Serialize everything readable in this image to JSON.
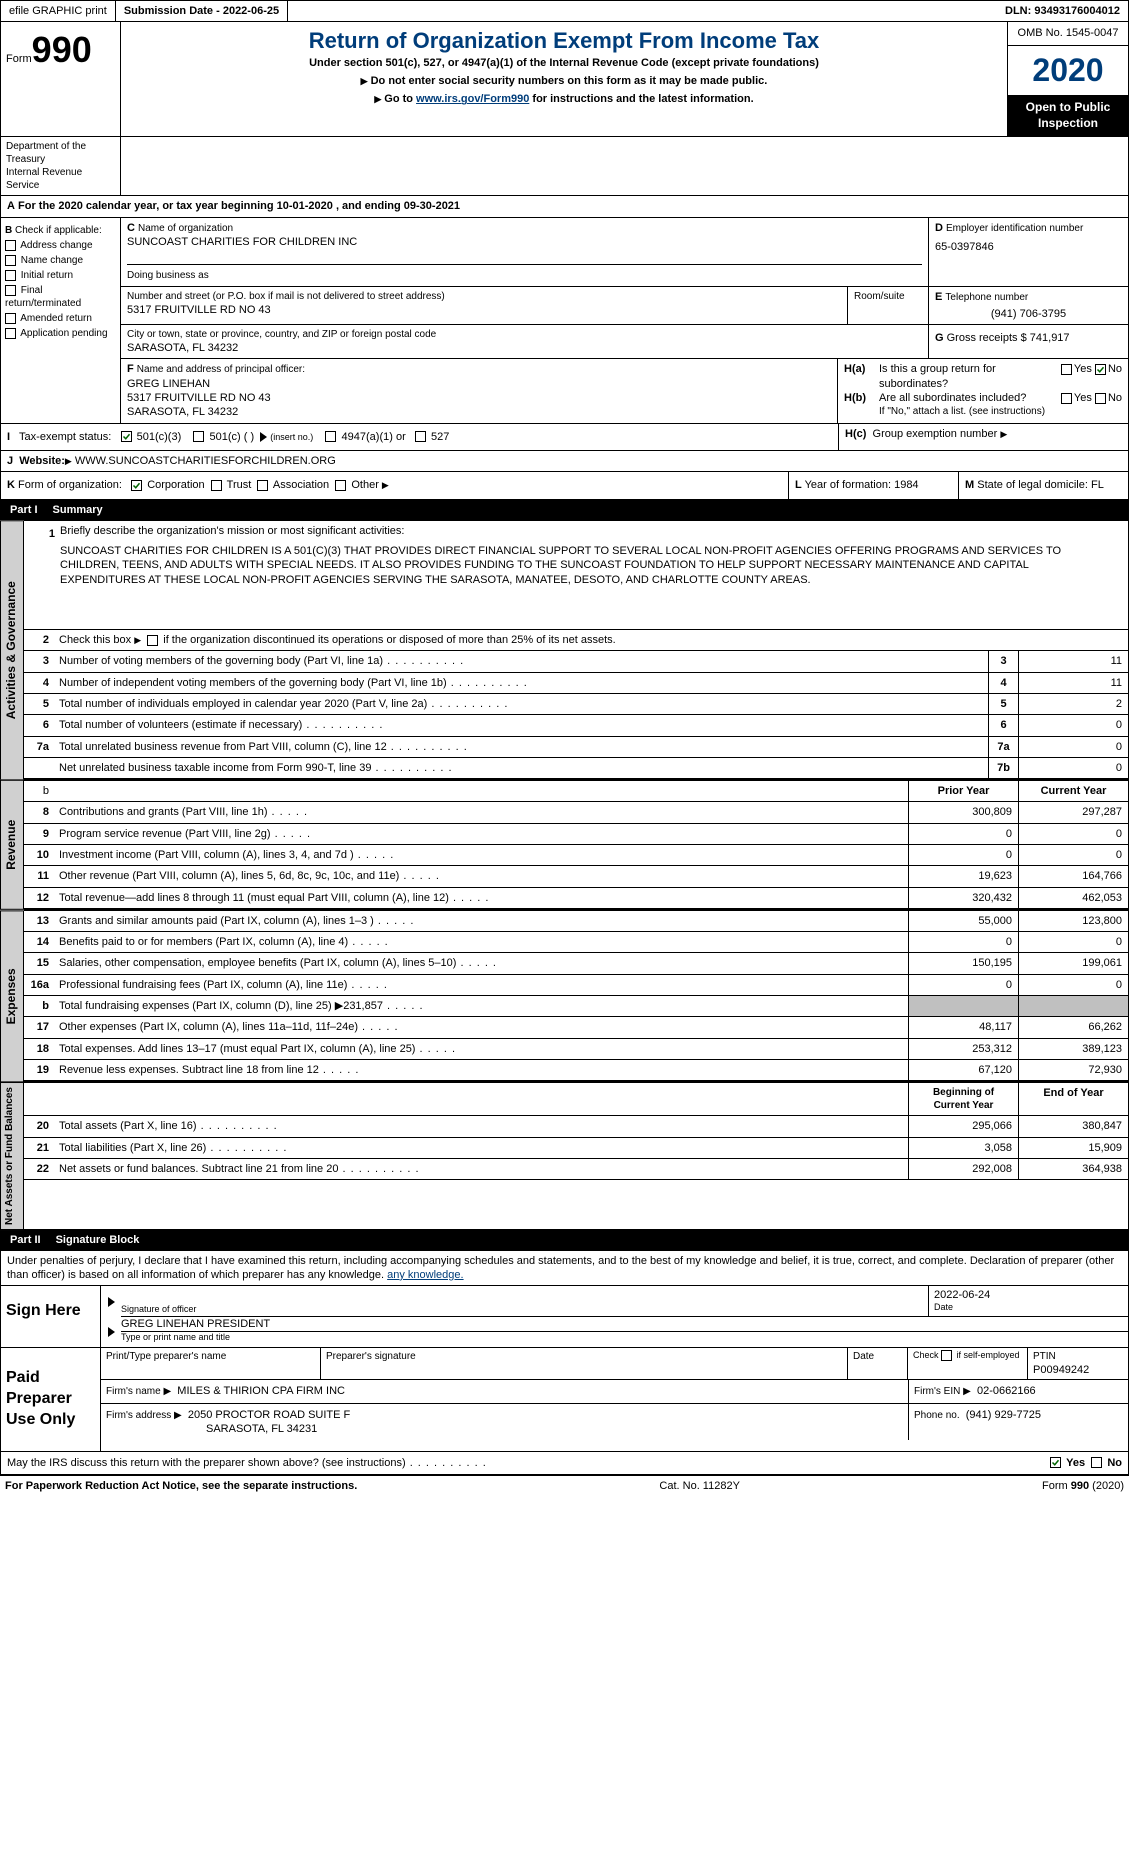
{
  "colors": {
    "blue": "#003d7a",
    "black": "#000000",
    "gray": "#c0c0c0",
    "side_gray": "#d0d0d0",
    "check_green": "#006400"
  },
  "header_bar": {
    "efile": "efile GRAPHIC print",
    "submission": "Submission Date - 2022-06-25",
    "dln": "DLN: 93493176004012"
  },
  "form": {
    "form_label": "Form",
    "form_number": "990",
    "title": "Return of Organization Exempt From Income Tax",
    "subtitle": "Under section 501(c), 527, or 4947(a)(1) of the Internal Revenue Code (except private foundations)",
    "ssn_note": "Do not enter social security numbers on this form as it may be made public.",
    "goto_pre": "Go to ",
    "goto_link": "www.irs.gov/Form990",
    "goto_post": " for instructions and the latest information.",
    "omb": "OMB No. 1545-0047",
    "year": "2020",
    "open_public": "Open to Public Inspection",
    "dept1": "Department of the Treasury",
    "dept2": "Internal Revenue Service"
  },
  "section_a": {
    "a_label": "A",
    "period": "For the 2020 calendar year, or tax year beginning 10-01-2020   , and ending 09-30-2021",
    "b_label": "B",
    "b_text": "Check if applicable:",
    "checks": {
      "address": "Address change",
      "name": "Name change",
      "initial": "Initial return",
      "final": "Final return/terminated",
      "amended": "Amended return",
      "app": "Application pending"
    },
    "c_label": "C",
    "c_name_label": "Name of organization",
    "c_name": "SUNCOAST CHARITIES FOR CHILDREN INC",
    "dba_label": "Doing business as",
    "dba": "",
    "street_label": "Number and street (or P.O. box if mail is not delivered to street address)",
    "street": "5317 FRUITVILLE RD NO 43",
    "room_label": "Room/suite",
    "city_label": "City or town, state or province, country, and ZIP or foreign postal code",
    "city": "SARASOTA, FL  34232",
    "d_label": "D",
    "d_text": "Employer identification number",
    "ein": "65-0397846",
    "e_label": "E",
    "e_text": "Telephone number",
    "phone": "(941) 706-3795",
    "g_label": "G",
    "g_text": "Gross receipts $",
    "gross": "741,917",
    "f_label": "F",
    "f_text": "Name and address of principal officer:",
    "officer_name": "GREG LINEHAN",
    "officer_addr1": "5317 FRUITVILLE RD NO 43",
    "officer_addr2": "SARASOTA, FL  34232",
    "ha_label": "H(a)",
    "ha_text": "Is this a group return for subordinates?",
    "hb_label": "H(b)",
    "hb_text": "Are all subordinates included?",
    "hb_note": "If \"No,\" attach a list. (see instructions)",
    "hc_label": "H(c)",
    "hc_text": "Group exemption number",
    "yes": "Yes",
    "no": "No",
    "i_label": "I",
    "i_text": "Tax-exempt status:",
    "i_501c3": "501(c)(3)",
    "i_501c": "501(c) (   )",
    "i_insert": "(insert no.)",
    "i_4947": "4947(a)(1) or",
    "i_527": "527",
    "j_label": "J",
    "j_text": "Website:",
    "website": "WWW.SUNCOASTCHARITIESFORCHILDREN.ORG",
    "k_label": "K",
    "k_text": "Form of organization:",
    "k_corp": "Corporation",
    "k_trust": "Trust",
    "k_assoc": "Association",
    "k_other": "Other",
    "l_label": "L",
    "l_text": "Year of formation:",
    "l_year": "1984",
    "m_label": "M",
    "m_text": "State of legal domicile:",
    "m_state": "FL"
  },
  "part1": {
    "header_num": "Part I",
    "header_title": "Summary",
    "line1_num": "1",
    "line1_text": "Briefly describe the organization's mission or most significant activities:",
    "mission": "SUNCOAST CHARITIES FOR CHILDREN IS A 501(C)(3) THAT PROVIDES DIRECT FINANCIAL SUPPORT TO SEVERAL LOCAL NON-PROFIT AGENCIES OFFERING PROGRAMS AND SERVICES TO CHILDREN, TEENS, AND ADULTS WITH SPECIAL NEEDS. IT ALSO PROVIDES FUNDING TO THE SUNCOAST FOUNDATION TO HELP SUPPORT NECESSARY MAINTENANCE AND CAPITAL EXPENDITURES AT THESE LOCAL NON-PROFIT AGENCIES SERVING THE SARASOTA, MANATEE, DESOTO, AND CHARLOTTE COUNTY AREAS.",
    "line2_num": "2",
    "line2_text": "Check this box ▶     if the organization discontinued its operations or disposed of more than 25% of its net assets.",
    "rows": [
      {
        "n": "3",
        "text": "Number of voting members of the governing body (Part VI, line 1a)",
        "box": "3",
        "val": "11"
      },
      {
        "n": "4",
        "text": "Number of independent voting members of the governing body (Part VI, line 1b)",
        "box": "4",
        "val": "11"
      },
      {
        "n": "5",
        "text": "Total number of individuals employed in calendar year 2020 (Part V, line 2a)",
        "box": "5",
        "val": "2"
      },
      {
        "n": "6",
        "text": "Total number of volunteers (estimate if necessary)",
        "box": "6",
        "val": "0"
      },
      {
        "n": "7a",
        "text": "Total unrelated business revenue from Part VIII, column (C), line 12",
        "box": "7a",
        "val": "0"
      },
      {
        "n": "",
        "text": "Net unrelated business taxable income from Form 990-T, line 39",
        "box": "7b",
        "val": "0"
      }
    ],
    "side_label_gov": "Activities & Governance",
    "side_label_rev": "Revenue",
    "side_label_exp": "Expenses",
    "side_label_net": "Net Assets or Fund Balances",
    "col_prior": "Prior Year",
    "col_current": "Current Year",
    "rev_rows": [
      {
        "n": "8",
        "text": "Contributions and grants (Part VIII, line 1h)",
        "prior": "300,809",
        "curr": "297,287"
      },
      {
        "n": "9",
        "text": "Program service revenue (Part VIII, line 2g)",
        "prior": "0",
        "curr": "0"
      },
      {
        "n": "10",
        "text": "Investment income (Part VIII, column (A), lines 3, 4, and 7d )",
        "prior": "0",
        "curr": "0"
      },
      {
        "n": "11",
        "text": "Other revenue (Part VIII, column (A), lines 5, 6d, 8c, 9c, 10c, and 11e)",
        "prior": "19,623",
        "curr": "164,766"
      },
      {
        "n": "12",
        "text": "Total revenue—add lines 8 through 11 (must equal Part VIII, column (A), line 12)",
        "prior": "320,432",
        "curr": "462,053"
      }
    ],
    "exp_rows": [
      {
        "n": "13",
        "text": "Grants and similar amounts paid (Part IX, column (A), lines 1–3 )",
        "prior": "55,000",
        "curr": "123,800"
      },
      {
        "n": "14",
        "text": "Benefits paid to or for members (Part IX, column (A), line 4)",
        "prior": "0",
        "curr": "0"
      },
      {
        "n": "15",
        "text": "Salaries, other compensation, employee benefits (Part IX, column (A), lines 5–10)",
        "prior": "150,195",
        "curr": "199,061"
      },
      {
        "n": "16a",
        "text": "Professional fundraising fees (Part IX, column (A), line 11e)",
        "prior": "0",
        "curr": "0"
      },
      {
        "n": "b",
        "text": "Total fundraising expenses (Part IX, column (D), line 25) ▶231,857",
        "prior": "gray",
        "curr": "gray"
      },
      {
        "n": "17",
        "text": "Other expenses (Part IX, column (A), lines 11a–11d, 11f–24e)",
        "prior": "48,117",
        "curr": "66,262"
      },
      {
        "n": "18",
        "text": "Total expenses. Add lines 13–17 (must equal Part IX, column (A), line 25)",
        "prior": "253,312",
        "curr": "389,123"
      },
      {
        "n": "19",
        "text": "Revenue less expenses. Subtract line 18 from line 12",
        "prior": "67,120",
        "curr": "72,930"
      }
    ],
    "col_begin": "Beginning of Current Year",
    "col_end": "End of Year",
    "net_rows": [
      {
        "n": "20",
        "text": "Total assets (Part X, line 16)",
        "prior": "295,066",
        "curr": "380,847"
      },
      {
        "n": "21",
        "text": "Total liabilities (Part X, line 26)",
        "prior": "3,058",
        "curr": "15,909"
      },
      {
        "n": "22",
        "text": "Net assets or fund balances. Subtract line 21 from line 20",
        "prior": "292,008",
        "curr": "364,938"
      }
    ]
  },
  "part2": {
    "header_num": "Part II",
    "header_title": "Signature Block",
    "declaration": "Under penalties of perjury, I declare that I have examined this return, including accompanying schedules and statements, and to the best of my knowledge and belief, it is true, correct, and complete. Declaration of preparer (other than officer) is based on all information of which preparer has any knowledge.",
    "sign_here": "Sign Here",
    "sig_officer": "Signature of officer",
    "date_label": "Date",
    "sig_date": "2022-06-24",
    "name_title_label": "Type or print name and title",
    "name_title": "GREG LINEHAN  PRESIDENT",
    "paid_prep": "Paid Preparer Use Only",
    "prep_name_label": "Print/Type preparer's name",
    "prep_sig_label": "Preparer's signature",
    "check_self": "Check        if self-employed",
    "ptin_label": "PTIN",
    "ptin": "P00949242",
    "firm_name_label": "Firm's name    ▶",
    "firm_name": "MILES & THIRION CPA FIRM INC",
    "firm_ein_label": "Firm's EIN ▶",
    "firm_ein": "02-0662166",
    "firm_addr_label": "Firm's address ▶",
    "firm_addr1": "2050 PROCTOR ROAD SUITE F",
    "firm_addr2": "SARASOTA, FL  34231",
    "phone_label": "Phone no.",
    "phone": "(941) 929-7725",
    "discuss": "May the IRS discuss this return with the preparer shown above? (see instructions)"
  },
  "footer": {
    "paperwork": "For Paperwork Reduction Act Notice, see the separate instructions.",
    "cat": "Cat. No. 11282Y",
    "form": "Form 990 (2020)"
  }
}
